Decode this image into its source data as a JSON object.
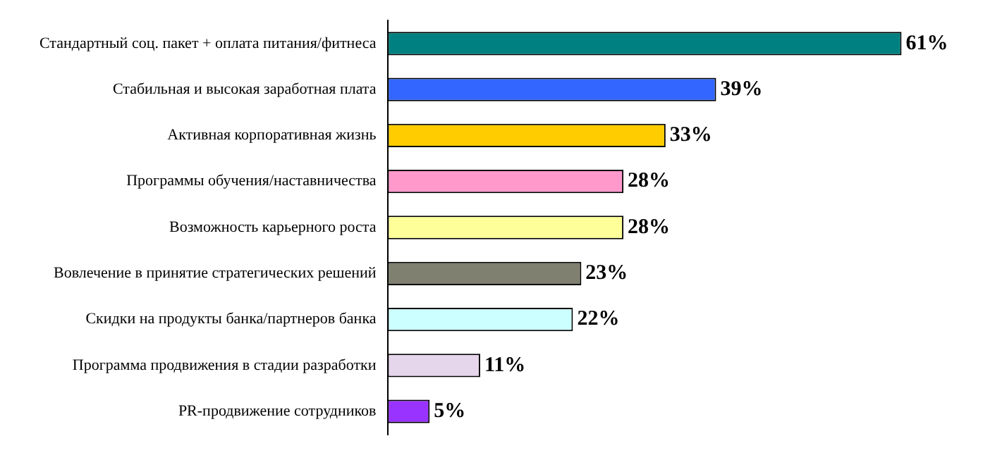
{
  "chart_data": {
    "type": "bar",
    "orientation": "horizontal",
    "categories": [
      "Стандартный соц. пакет + оплата питания/фитнеса",
      "Стабильная и высокая заработная плата",
      "Активная корпоративная жизнь",
      "Программы обучения/наставничества",
      "Возможность карьерного роста",
      "Вовлечение в принятие стратегических решений",
      "Скидки на продукты банка/партнеров банка",
      "Программа продвижения в стадии разработки",
      "PR-продвижение сотрудников"
    ],
    "values": [
      61,
      39,
      33,
      28,
      28,
      23,
      22,
      11,
      5
    ],
    "value_labels": [
      "61%",
      "39%",
      "33%",
      "28%",
      "28%",
      "23%",
      "22%",
      "11%",
      "5%"
    ],
    "colors": [
      "#008080",
      "#3366ff",
      "#ffcc00",
      "#ff99cc",
      "#ffff99",
      "#808070",
      "#ccffff",
      "#e6d6ec",
      "#9933ff"
    ],
    "grid": false,
    "legend": false
  }
}
